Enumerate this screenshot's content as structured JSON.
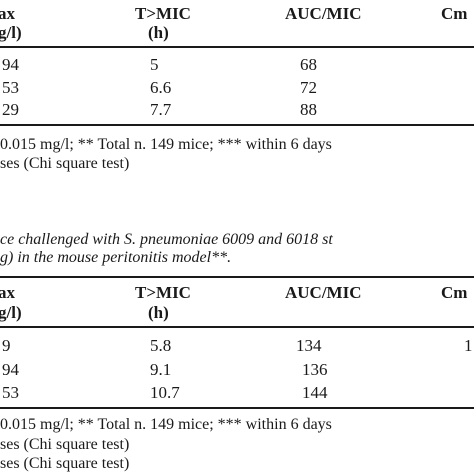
{
  "table1": {
    "headers": [
      {
        "line1": "ax",
        "line2": "g/l)"
      },
      {
        "line1": "T>MIC",
        "line2": "(h)"
      },
      {
        "line1": "AUC/MIC",
        "line2": ""
      },
      {
        "line1": "Cm",
        "line2": ""
      }
    ],
    "rows": [
      [
        "94",
        "5",
        "68"
      ],
      [
        "53",
        "6.6",
        "72"
      ],
      [
        "29",
        "7.7",
        "88"
      ]
    ],
    "footnotes": [
      "0.015 mg/l; ** Total n. 149 mice; *** within 6 days",
      "ses (Chi square test)"
    ]
  },
  "table2": {
    "caption": [
      "ce challenged with S. pneumoniae 6009 and 6018 st",
      "g) in the mouse peritonitis model**."
    ],
    "headers": [
      {
        "line1": "ax",
        "line2": "g/l)"
      },
      {
        "line1": "T>MIC",
        "line2": "(h)"
      },
      {
        "line1": "AUC/MIC",
        "line2": ""
      },
      {
        "line1": "Cm",
        "line2": ""
      }
    ],
    "rows": [
      [
        "9",
        "5.8",
        "134",
        "1"
      ],
      [
        "94",
        "9.1",
        "136",
        ""
      ],
      [
        "53",
        "10.7",
        "144",
        ""
      ]
    ],
    "footnotes": [
      "0.015 mg/l; ** Total n. 149 mice; *** within 6 days",
      "ses (Chi square test)",
      "ses (Chi square test)"
    ]
  }
}
